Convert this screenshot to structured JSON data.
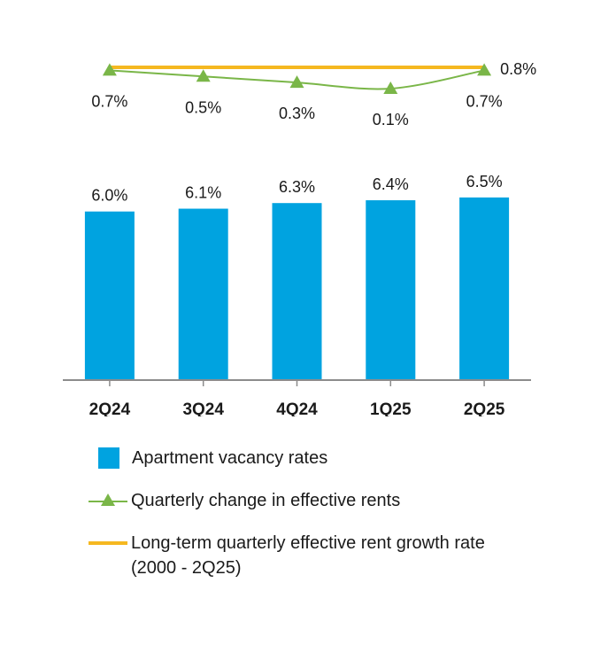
{
  "chart_data": {
    "type": "bar",
    "categories": [
      "2Q24",
      "3Q24",
      "4Q24",
      "1Q25",
      "2Q25"
    ],
    "series": [
      {
        "name": "Apartment vacancy rates",
        "kind": "bar",
        "values": [
          6.0,
          6.1,
          6.3,
          6.4,
          6.5
        ],
        "labels": [
          "6.0%",
          "6.1%",
          "6.3%",
          "6.4%",
          "6.5%"
        ],
        "color": "#00a3e0"
      },
      {
        "name": "Quarterly change in effective rents",
        "kind": "line-triangle",
        "values": [
          0.7,
          0.5,
          0.3,
          0.1,
          0.7
        ],
        "labels": [
          "0.7%",
          "0.5%",
          "0.3%",
          "0.1%",
          "0.7%"
        ],
        "color": "#7ab648"
      },
      {
        "name": "Long-term quarterly effective rent growth rate (2000 - 2Q25)",
        "kind": "line",
        "values": [
          0.8,
          0.8,
          0.8,
          0.8,
          0.8
        ],
        "end_label": "0.8%",
        "color": "#f5b820"
      }
    ],
    "ylim_bars": [
      0,
      7
    ],
    "ylim_lines": [
      0,
      0.8
    ]
  },
  "legend": {
    "items": [
      {
        "text": "Apartment vacancy rates"
      },
      {
        "text": "Quarterly change in effective rents"
      },
      {
        "text": "Long-term quarterly effective rent growth rate",
        "text2": "(2000 - 2Q25)"
      }
    ]
  },
  "colors": {
    "axis": "#8c8c8c",
    "text": "#1a1a1a"
  }
}
